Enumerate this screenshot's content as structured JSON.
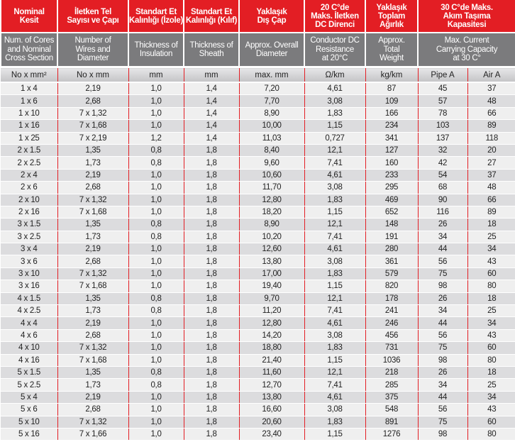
{
  "colors": {
    "header_red": "#e31e24",
    "header_grey": "#7b7b7d",
    "divider": "#e31e24"
  },
  "header_tr": [
    "Nominal\nKesit",
    "İletken Tel\nSayısı ve Çapı",
    "Standart Et\nKalınlığı (İzole)",
    "Standart Et\nKalınlığı (Kılıf)",
    "Yaklaşık\nDış Çap",
    "20 C°de\nMaks. İletken\nDC Direnci",
    "Yaklaşık\nToplam\nAğırlık",
    "30 C°de Maks.\nAkım Taşıma\nKapasitesi"
  ],
  "header_en": [
    "Num. of Cores\nand Nominal\nCross Section",
    "Number of\nWires and\nDiameter",
    "Thickness of\nInsulation",
    "Thickness of\nSheath",
    "Approx. Overall\nDiameter",
    "Conductor DC\nResistance\nat 20°C",
    "Approx.\nTotal\nWeight",
    "Max. Current\nCarrying Capacity\nat 30 C°"
  ],
  "units": [
    "No x mm²",
    "No x mm",
    "mm",
    "mm",
    "max. mm",
    "Ω/km",
    "kg/km",
    "Pipe A",
    "Air A"
  ],
  "rows": [
    [
      "1 x 4",
      "2,19",
      "1,0",
      "1,4",
      "7,20",
      "4,61",
      "87",
      "45",
      "37"
    ],
    [
      "1 x 6",
      "2,68",
      "1,0",
      "1,4",
      "7,70",
      "3,08",
      "109",
      "57",
      "48"
    ],
    [
      "1 x 10",
      "7 x 1,32",
      "1,0",
      "1,4",
      "8,90",
      "1,83",
      "166",
      "78",
      "66"
    ],
    [
      "1 x 16",
      "7 x 1,68",
      "1,0",
      "1,4",
      "10,00",
      "1,15",
      "234",
      "103",
      "89"
    ],
    [
      "1 x 25",
      "7 x 2,19",
      "1,2",
      "1,4",
      "11,03",
      "0,727",
      "341",
      "137",
      "118"
    ],
    [
      "2 x 1.5",
      "1,35",
      "0,8",
      "1,8",
      "8,40",
      "12,1",
      "127",
      "32",
      "20"
    ],
    [
      "2 x 2.5",
      "1,73",
      "0,8",
      "1,8",
      "9,60",
      "7,41",
      "160",
      "42",
      "27"
    ],
    [
      "2 x 4",
      "2,19",
      "1,0",
      "1,8",
      "10,60",
      "4,61",
      "233",
      "54",
      "37"
    ],
    [
      "2 x 6",
      "2,68",
      "1,0",
      "1,8",
      "11,70",
      "3,08",
      "295",
      "68",
      "48"
    ],
    [
      "2 x 10",
      "7 x 1,32",
      "1,0",
      "1,8",
      "12,80",
      "1,83",
      "469",
      "90",
      "66"
    ],
    [
      "2 x 16",
      "7 x 1,68",
      "1,0",
      "1,8",
      "18,20",
      "1,15",
      "652",
      "116",
      "89"
    ],
    [
      "3 x 1.5",
      "1,35",
      "0,8",
      "1,8",
      "8,90",
      "12,1",
      "148",
      "26",
      "18"
    ],
    [
      "3 x 2.5",
      "1,73",
      "0,8",
      "1,8",
      "10,20",
      "7,41",
      "191",
      "34",
      "25"
    ],
    [
      "3 x 4",
      "2,19",
      "1,0",
      "1,8",
      "12,60",
      "4,61",
      "280",
      "44",
      "34"
    ],
    [
      "3 x 6",
      "2,68",
      "1,0",
      "1,8",
      "13,80",
      "3,08",
      "361",
      "56",
      "43"
    ],
    [
      "3 x 10",
      "7 x 1,32",
      "1,0",
      "1,8",
      "17,00",
      "1,83",
      "579",
      "75",
      "60"
    ],
    [
      "3 x 16",
      "7 x 1,68",
      "1,0",
      "1,8",
      "19,40",
      "1,15",
      "820",
      "98",
      "80"
    ],
    [
      "4 x 1.5",
      "1,35",
      "0,8",
      "1,8",
      "9,70",
      "12,1",
      "178",
      "26",
      "18"
    ],
    [
      "4 x 2.5",
      "1,73",
      "0,8",
      "1,8",
      "11,20",
      "7,41",
      "241",
      "34",
      "25"
    ],
    [
      "4 x 4",
      "2,19",
      "1,0",
      "1,8",
      "12,80",
      "4,61",
      "246",
      "44",
      "34"
    ],
    [
      "4 x 6",
      "2,68",
      "1,0",
      "1,8",
      "14,20",
      "3,08",
      "456",
      "56",
      "43"
    ],
    [
      "4 x 10",
      "7 x 1,32",
      "1,0",
      "1,8",
      "18,80",
      "1,83",
      "731",
      "75",
      "60"
    ],
    [
      "4 x 16",
      "7 x 1,68",
      "1,0",
      "1,8",
      "21,40",
      "1,15",
      "1036",
      "98",
      "80"
    ],
    [
      "5 x 1.5",
      "1,35",
      "0,8",
      "1,8",
      "11,60",
      "12,1",
      "218",
      "26",
      "18"
    ],
    [
      "5 x 2.5",
      "1,73",
      "0,8",
      "1,8",
      "12,70",
      "7,41",
      "285",
      "34",
      "25"
    ],
    [
      "5 x 4",
      "2,19",
      "1,0",
      "1,8",
      "13,80",
      "4,61",
      "375",
      "44",
      "34"
    ],
    [
      "5 x 6",
      "2,68",
      "1,0",
      "1,8",
      "16,60",
      "3,08",
      "548",
      "56",
      "43"
    ],
    [
      "5 x 10",
      "7 x 1,32",
      "1,0",
      "1,8",
      "20,60",
      "1,83",
      "891",
      "75",
      "60"
    ],
    [
      "5 x 16",
      "7 x 1,66",
      "1,0",
      "1,8",
      "23,40",
      "1,15",
      "1276",
      "98",
      "80"
    ]
  ]
}
